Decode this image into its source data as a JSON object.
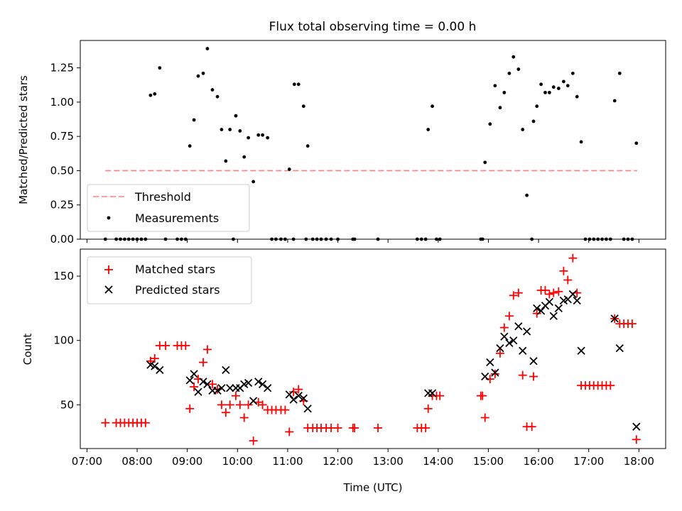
{
  "figure": {
    "title": "Flux total observing time = 0.00 h"
  },
  "chart_data": [
    {
      "type": "scatter",
      "panel": "top",
      "ylabel": "Matched/Predicted stars",
      "xlim": [
        "06:52",
        "18:32"
      ],
      "ylim": [
        0,
        1.45
      ],
      "yticks": [
        0,
        0.25,
        0.5,
        0.75,
        1.0,
        1.25
      ],
      "ytick_labels": [
        "0.00",
        "0.25",
        "0.50",
        "0.75",
        "1.00",
        "1.25"
      ],
      "legend": {
        "placement": "lower-left",
        "entries": [
          {
            "label": "Threshold",
            "style": "dashed-line",
            "color": "#ff7f7f"
          },
          {
            "label": "Measurements",
            "style": "dot",
            "color": "#000000"
          }
        ]
      },
      "threshold": {
        "y": 0.5,
        "x_start": "07:22",
        "x_end": "17:58",
        "color": "#ff7f7f"
      },
      "measurements": {
        "color": "#000000",
        "points": [
          [
            "07:22",
            0
          ],
          [
            "07:35",
            0
          ],
          [
            "07:40",
            0
          ],
          [
            "07:45",
            0
          ],
          [
            "07:50",
            0
          ],
          [
            "07:55",
            0
          ],
          [
            "08:00",
            0
          ],
          [
            "08:05",
            0
          ],
          [
            "08:10",
            0
          ],
          [
            "08:16",
            1.05
          ],
          [
            "08:21",
            1.06
          ],
          [
            "08:27",
            1.25
          ],
          [
            "08:34",
            0
          ],
          [
            "08:48",
            0
          ],
          [
            "08:53",
            0
          ],
          [
            "08:58",
            0
          ],
          [
            "09:03",
            0.68
          ],
          [
            "09:08",
            0.87
          ],
          [
            "09:13",
            1.19
          ],
          [
            "09:19",
            1.21
          ],
          [
            "09:24",
            1.39
          ],
          [
            "09:30",
            1.09
          ],
          [
            "09:36",
            1.04
          ],
          [
            "09:41",
            0.8
          ],
          [
            "09:46",
            0.57
          ],
          [
            "09:51",
            0.8
          ],
          [
            "09:55",
            0
          ],
          [
            "09:58",
            0.9
          ],
          [
            "10:03",
            0.79
          ],
          [
            "10:08",
            0.6
          ],
          [
            "10:13",
            0.74
          ],
          [
            "10:19",
            0.42
          ],
          [
            "10:25",
            0.76
          ],
          [
            "10:30",
            0.76
          ],
          [
            "10:36",
            0.74
          ],
          [
            "10:41",
            0
          ],
          [
            "10:46",
            0
          ],
          [
            "10:52",
            0
          ],
          [
            "10:57",
            0
          ],
          [
            "11:02",
            0.51
          ],
          [
            "11:07",
            0
          ],
          [
            "11:08",
            1.13
          ],
          [
            "11:13",
            1.13
          ],
          [
            "11:19",
            0.97
          ],
          [
            "11:22",
            0
          ],
          [
            "11:24",
            0.68
          ],
          [
            "11:30",
            0
          ],
          [
            "11:35",
            0
          ],
          [
            "11:40",
            0
          ],
          [
            "11:46",
            0
          ],
          [
            "11:52",
            0
          ],
          [
            "12:00",
            0
          ],
          [
            "12:18",
            0
          ],
          [
            "12:20",
            0
          ],
          [
            "12:48",
            0
          ],
          [
            "13:35",
            0
          ],
          [
            "13:40",
            0
          ],
          [
            "13:45",
            0
          ],
          [
            "13:48",
            0.8
          ],
          [
            "13:53",
            0.97
          ],
          [
            "13:58",
            0
          ],
          [
            "14:02",
            0
          ],
          [
            "14:51",
            0
          ],
          [
            "14:53",
            0
          ],
          [
            "14:56",
            0.56
          ],
          [
            "15:02",
            0.84
          ],
          [
            "15:08",
            1.12
          ],
          [
            "15:14",
            0.96
          ],
          [
            "15:19",
            1.07
          ],
          [
            "15:25",
            1.21
          ],
          [
            "15:30",
            1.33
          ],
          [
            "15:36",
            1.24
          ],
          [
            "15:41",
            0.8
          ],
          [
            "15:46",
            0.32
          ],
          [
            "15:52",
            0
          ],
          [
            "15:54",
            0.86
          ],
          [
            "15:58",
            0.97
          ],
          [
            "16:03",
            1.13
          ],
          [
            "16:08",
            1.07
          ],
          [
            "16:13",
            1.07
          ],
          [
            "16:18",
            1.11
          ],
          [
            "16:24",
            1.1
          ],
          [
            "16:30",
            1.15
          ],
          [
            "16:35",
            1.12
          ],
          [
            "16:41",
            1.21
          ],
          [
            "16:46",
            1.04
          ],
          [
            "16:51",
            0.71
          ],
          [
            "16:56",
            0
          ],
          [
            "17:01",
            0
          ],
          [
            "17:06",
            0
          ],
          [
            "17:11",
            0
          ],
          [
            "17:16",
            0
          ],
          [
            "17:21",
            0
          ],
          [
            "17:26",
            0
          ],
          [
            "17:31",
            1.01
          ],
          [
            "17:37",
            1.21
          ],
          [
            "17:42",
            0
          ],
          [
            "17:47",
            0
          ],
          [
            "17:52",
            0
          ],
          [
            "17:57",
            0.7
          ]
        ]
      }
    },
    {
      "type": "scatter",
      "panel": "bottom",
      "xlabel": "Time (UTC)",
      "ylabel": "Count",
      "xlim": [
        "06:52",
        "18:32"
      ],
      "ylim": [
        16,
        171
      ],
      "yticks": [
        50,
        100,
        150
      ],
      "ytick_labels": [
        "50",
        "100",
        "150"
      ],
      "xticks": [
        "07:00",
        "08:00",
        "09:00",
        "10:00",
        "11:00",
        "12:00",
        "13:00",
        "14:00",
        "15:00",
        "16:00",
        "17:00",
        "18:00"
      ],
      "xtick_labels": [
        "07:00",
        "08:00",
        "09:00",
        "10:00",
        "11:00",
        "12:00",
        "13:00",
        "14:00",
        "15:00",
        "16:00",
        "17:00",
        "18:00"
      ],
      "legend": {
        "placement": "upper-left",
        "entries": [
          {
            "label": "Matched stars",
            "marker": "plus",
            "color": "#ff0000"
          },
          {
            "label": "Predicted stars",
            "marker": "x",
            "color": "#000000"
          }
        ]
      },
      "series": [
        {
          "name": "Matched stars",
          "marker": "plus",
          "color": "#ff0000",
          "points": [
            [
              "07:22",
              36
            ],
            [
              "07:35",
              36
            ],
            [
              "07:40",
              36
            ],
            [
              "07:45",
              36
            ],
            [
              "07:50",
              36
            ],
            [
              "07:55",
              36
            ],
            [
              "08:00",
              36
            ],
            [
              "08:05",
              36
            ],
            [
              "08:10",
              36
            ],
            [
              "08:16",
              84
            ],
            [
              "08:21",
              86
            ],
            [
              "08:27",
              96
            ],
            [
              "08:34",
              96
            ],
            [
              "08:48",
              96
            ],
            [
              "08:53",
              96
            ],
            [
              "08:58",
              96
            ],
            [
              "09:03",
              47
            ],
            [
              "09:08",
              64
            ],
            [
              "09:13",
              70
            ],
            [
              "09:19",
              83
            ],
            [
              "09:24",
              93
            ],
            [
              "09:30",
              66
            ],
            [
              "09:36",
              62
            ],
            [
              "09:41",
              50
            ],
            [
              "09:46",
              44
            ],
            [
              "09:51",
              50
            ],
            [
              "09:58",
              57
            ],
            [
              "10:03",
              50
            ],
            [
              "10:08",
              40
            ],
            [
              "10:13",
              50
            ],
            [
              "10:19",
              22
            ],
            [
              "10:25",
              52
            ],
            [
              "10:30",
              50
            ],
            [
              "10:36",
              46
            ],
            [
              "10:41",
              46
            ],
            [
              "10:46",
              46
            ],
            [
              "10:52",
              46
            ],
            [
              "10:57",
              46
            ],
            [
              "11:02",
              29
            ],
            [
              "11:07",
              60
            ],
            [
              "11:13",
              62
            ],
            [
              "11:19",
              53
            ],
            [
              "11:24",
              32
            ],
            [
              "11:30",
              32
            ],
            [
              "11:35",
              32
            ],
            [
              "11:40",
              32
            ],
            [
              "11:46",
              32
            ],
            [
              "11:52",
              32
            ],
            [
              "12:00",
              32
            ],
            [
              "12:18",
              32
            ],
            [
              "12:20",
              32
            ],
            [
              "12:48",
              32
            ],
            [
              "13:35",
              32
            ],
            [
              "13:40",
              32
            ],
            [
              "13:45",
              32
            ],
            [
              "13:48",
              47
            ],
            [
              "13:53",
              57
            ],
            [
              "13:58",
              57
            ],
            [
              "14:02",
              57
            ],
            [
              "14:51",
              57
            ],
            [
              "14:53",
              57
            ],
            [
              "14:56",
              40
            ],
            [
              "15:02",
              70
            ],
            [
              "15:08",
              74
            ],
            [
              "15:14",
              90
            ],
            [
              "15:19",
              110
            ],
            [
              "15:25",
              119
            ],
            [
              "15:30",
              135
            ],
            [
              "15:36",
              137
            ],
            [
              "15:41",
              73
            ],
            [
              "15:46",
              33
            ],
            [
              "15:52",
              33
            ],
            [
              "15:54",
              72
            ],
            [
              "15:58",
              121
            ],
            [
              "16:03",
              139
            ],
            [
              "16:08",
              139
            ],
            [
              "16:13",
              136
            ],
            [
              "16:18",
              137
            ],
            [
              "16:24",
              138
            ],
            [
              "16:30",
              154
            ],
            [
              "16:35",
              147
            ],
            [
              "16:41",
              164
            ],
            [
              "16:46",
              137
            ],
            [
              "16:51",
              65
            ],
            [
              "16:56",
              65
            ],
            [
              "17:01",
              65
            ],
            [
              "17:06",
              65
            ],
            [
              "17:11",
              65
            ],
            [
              "17:16",
              65
            ],
            [
              "17:21",
              65
            ],
            [
              "17:26",
              65
            ],
            [
              "17:31",
              117
            ],
            [
              "17:37",
              113
            ],
            [
              "17:42",
              113
            ],
            [
              "17:47",
              113
            ],
            [
              "17:52",
              113
            ],
            [
              "17:57",
              23
            ]
          ]
        },
        {
          "name": "Predicted stars",
          "marker": "x",
          "color": "#000000",
          "points": [
            [
              "08:16",
              81
            ],
            [
              "08:21",
              80
            ],
            [
              "08:27",
              77
            ],
            [
              "09:03",
              69
            ],
            [
              "09:08",
              74
            ],
            [
              "09:13",
              60
            ],
            [
              "09:19",
              68
            ],
            [
              "09:24",
              66
            ],
            [
              "09:30",
              61
            ],
            [
              "09:36",
              61
            ],
            [
              "09:41",
              63
            ],
            [
              "09:46",
              77
            ],
            [
              "09:51",
              63
            ],
            [
              "09:58",
              63
            ],
            [
              "10:03",
              63
            ],
            [
              "10:08",
              66
            ],
            [
              "10:13",
              67
            ],
            [
              "10:19",
              53
            ],
            [
              "10:25",
              68
            ],
            [
              "10:30",
              66
            ],
            [
              "10:36",
              63
            ],
            [
              "11:02",
              58
            ],
            [
              "11:07",
              54
            ],
            [
              "11:13",
              57
            ],
            [
              "11:19",
              55
            ],
            [
              "11:24",
              47
            ],
            [
              "13:48",
              59
            ],
            [
              "13:53",
              59
            ],
            [
              "14:56",
              72
            ],
            [
              "15:02",
              83
            ],
            [
              "15:08",
              75
            ],
            [
              "15:14",
              94
            ],
            [
              "15:19",
              103
            ],
            [
              "15:25",
              98
            ],
            [
              "15:30",
              100
            ],
            [
              "15:36",
              111
            ],
            [
              "15:41",
              92
            ],
            [
              "15:46",
              107
            ],
            [
              "15:54",
              84
            ],
            [
              "15:58",
              125
            ],
            [
              "16:03",
              123
            ],
            [
              "16:08",
              127
            ],
            [
              "16:13",
              130
            ],
            [
              "16:18",
              119
            ],
            [
              "16:24",
              125
            ],
            [
              "16:30",
              131
            ],
            [
              "16:35",
              132
            ],
            [
              "16:41",
              136
            ],
            [
              "16:46",
              131
            ],
            [
              "16:51",
              92
            ],
            [
              "17:31",
              117
            ],
            [
              "17:37",
              94
            ],
            [
              "17:57",
              33
            ]
          ]
        }
      ]
    }
  ]
}
